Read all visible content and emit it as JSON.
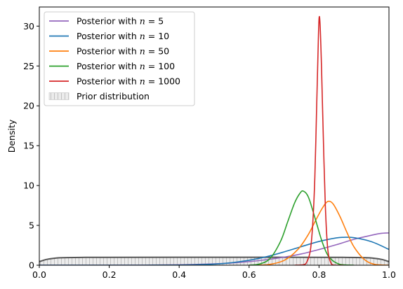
{
  "chart_data": {
    "type": "line",
    "title": "",
    "xlabel": "",
    "ylabel": "Density",
    "xlim": [
      0.0,
      1.0
    ],
    "ylim": [
      0,
      32.4
    ],
    "x_ticks": [
      0.0,
      0.2,
      0.4,
      0.6,
      0.8,
      1.0
    ],
    "x_tick_labels": [
      "0.0",
      "0.2",
      "0.4",
      "0.6",
      "0.8",
      "1.0"
    ],
    "y_ticks": [
      0,
      5,
      10,
      15,
      20,
      25,
      30
    ],
    "y_tick_labels": [
      "0",
      "5",
      "10",
      "15",
      "20",
      "25",
      "30"
    ],
    "grid": false,
    "legend_position": "top-left",
    "series": [
      {
        "name_prefix": "Posterior with ",
        "name_var": "n",
        "name_value": "5",
        "color": "#9467bd",
        "x": [
          0.0,
          0.1,
          0.2,
          0.3,
          0.4,
          0.5,
          0.55,
          0.6,
          0.65,
          0.7,
          0.75,
          0.8,
          0.85,
          0.9,
          0.95,
          0.975,
          1.0
        ],
        "y": [
          0.0,
          0.0,
          0.0,
          0.01,
          0.05,
          0.17,
          0.28,
          0.45,
          0.69,
          1.01,
          1.42,
          1.97,
          2.58,
          3.25,
          3.76,
          3.98,
          4.05
        ]
      },
      {
        "name_prefix": "Posterior with ",
        "name_var": "n",
        "name_value": "10",
        "color": "#1f77b4",
        "x": [
          0.0,
          0.2,
          0.3,
          0.4,
          0.5,
          0.55,
          0.6,
          0.65,
          0.7,
          0.75,
          0.8,
          0.85,
          0.87,
          0.9,
          0.95,
          1.0
        ],
        "y": [
          0.0,
          0.0,
          0.0,
          0.02,
          0.14,
          0.32,
          0.62,
          1.07,
          1.67,
          2.34,
          2.98,
          3.43,
          3.5,
          3.45,
          2.95,
          1.98
        ]
      },
      {
        "name_prefix": "Posterior with ",
        "name_var": "n",
        "name_value": "50",
        "color": "#ff7f0e",
        "x": [
          0.6,
          0.65,
          0.7,
          0.74,
          0.77,
          0.79,
          0.81,
          0.825,
          0.84,
          0.86,
          0.88,
          0.9,
          0.93,
          0.96,
          1.0
        ],
        "y": [
          0.0,
          0.05,
          0.6,
          2.0,
          3.9,
          5.6,
          7.2,
          8.0,
          7.7,
          6.1,
          4.1,
          2.3,
          0.7,
          0.1,
          0.0
        ]
      },
      {
        "name_prefix": "Posterior with ",
        "name_var": "n",
        "name_value": "100",
        "color": "#2ca02c",
        "x": [
          0.6,
          0.63,
          0.66,
          0.69,
          0.71,
          0.73,
          0.745,
          0.755,
          0.77,
          0.79,
          0.81,
          0.83,
          0.86,
          0.9
        ],
        "y": [
          0.0,
          0.15,
          0.85,
          3.0,
          5.4,
          7.8,
          9.0,
          9.3,
          8.5,
          5.7,
          2.8,
          0.95,
          0.1,
          0.0
        ]
      },
      {
        "name_prefix": "Posterior with ",
        "name_var": "n",
        "name_value": "1000",
        "color": "#d62728",
        "x": [
          0.73,
          0.755,
          0.765,
          0.775,
          0.782,
          0.788,
          0.793,
          0.797,
          0.8,
          0.803,
          0.807,
          0.812,
          0.818,
          0.825,
          0.835,
          0.845,
          0.87
        ],
        "y": [
          0.0,
          0.05,
          0.4,
          1.8,
          5.2,
          11.0,
          19.5,
          26.5,
          30.9,
          30.2,
          25.0,
          16.5,
          7.5,
          2.0,
          0.2,
          0.0,
          0.0
        ]
      }
    ],
    "prior": {
      "name": "Prior distribution",
      "color": "#555555",
      "fill_color": "#e8e8e8",
      "x": [
        0.0,
        0.02,
        0.04,
        0.06,
        0.08,
        0.12,
        0.2,
        0.5,
        0.8,
        0.88,
        0.92,
        0.94,
        0.96,
        0.98,
        1.0
      ],
      "y": [
        0.45,
        0.72,
        0.86,
        0.93,
        0.96,
        0.98,
        0.99,
        1.0,
        0.99,
        0.98,
        0.96,
        0.93,
        0.86,
        0.72,
        0.45
      ]
    }
  }
}
